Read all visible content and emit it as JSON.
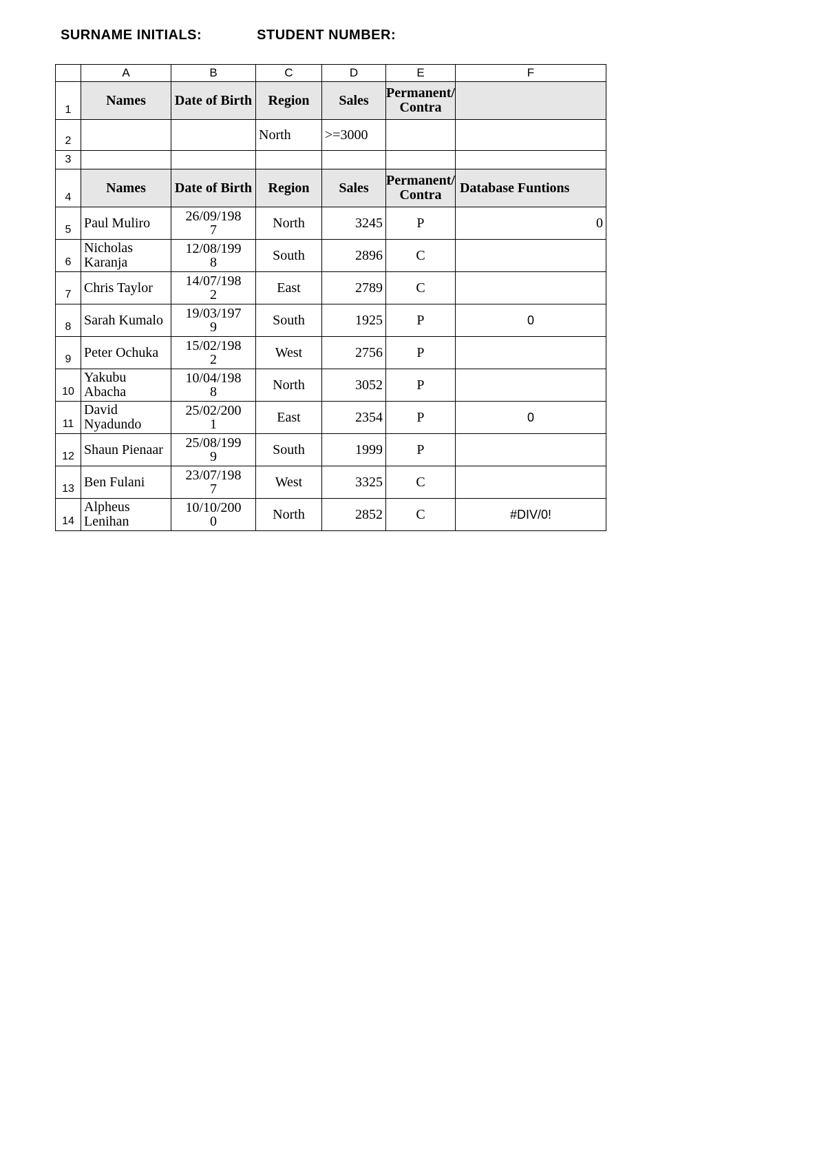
{
  "header": {
    "surname_label": "SURNAME INITIALS:",
    "student_label": "STUDENT NUMBER:"
  },
  "columns": [
    "A",
    "B",
    "C",
    "D",
    "E",
    "F"
  ],
  "section_headers": {
    "names": "Names",
    "dob": "Date of Birth",
    "region": "Region",
    "sales": "Sales",
    "perm": "Permanent/ Contra",
    "db_func": "Database Funtions"
  },
  "criteria": {
    "region": "North",
    "sales": ">=3000"
  },
  "rows": [
    {
      "n": "5",
      "name": "Paul Muliro",
      "dob": "26/09/1987",
      "region": "North",
      "sales": "3245",
      "perm": "P",
      "f": "0",
      "f_align": "right",
      "f_font": "serif"
    },
    {
      "n": "6",
      "name": "Nicholas Karanja",
      "dob": "12/08/1998",
      "region": "South",
      "sales": "2896",
      "perm": "C",
      "f": "",
      "f_align": "center",
      "f_font": "arial"
    },
    {
      "n": "7",
      "name": "Chris Taylor",
      "dob": "14/07/1982",
      "region": "East",
      "sales": "2789",
      "perm": "C",
      "f": "",
      "f_align": "center",
      "f_font": "arial"
    },
    {
      "n": "8",
      "name": "Sarah Kumalo",
      "dob": "19/03/1979",
      "region": "South",
      "sales": "1925",
      "perm": "P",
      "f": "0",
      "f_align": "center",
      "f_font": "arial"
    },
    {
      "n": "9",
      "name": "Peter Ochuka",
      "dob": "15/02/1982",
      "region": "West",
      "sales": "2756",
      "perm": "P",
      "f": "",
      "f_align": "center",
      "f_font": "arial"
    },
    {
      "n": "10",
      "name": "Yakubu Abacha",
      "dob": "10/04/1988",
      "region": "North",
      "sales": "3052",
      "perm": "P",
      "f": "",
      "f_align": "center",
      "f_font": "arial"
    },
    {
      "n": "11",
      "name": "David Nyadundo",
      "dob": "25/02/2001",
      "region": "East",
      "sales": "2354",
      "perm": "P",
      "f": "0",
      "f_align": "center",
      "f_font": "arial"
    },
    {
      "n": "12",
      "name": "Shaun Pienaar",
      "dob": "25/08/1999",
      "region": "South",
      "sales": "1999",
      "perm": "P",
      "f": "",
      "f_align": "center",
      "f_font": "arial"
    },
    {
      "n": "13",
      "name": "Ben Fulani",
      "dob": "23/07/1987",
      "region": "West",
      "sales": "3325",
      "perm": "C",
      "f": "",
      "f_align": "center",
      "f_font": "arial"
    },
    {
      "n": "14",
      "name": "Alpheus Lenihan",
      "dob": "10/10/2000",
      "region": "North",
      "sales": "2852",
      "perm": "C",
      "f": "#DIV/0!",
      "f_align": "center",
      "f_font": "arial"
    }
  ]
}
